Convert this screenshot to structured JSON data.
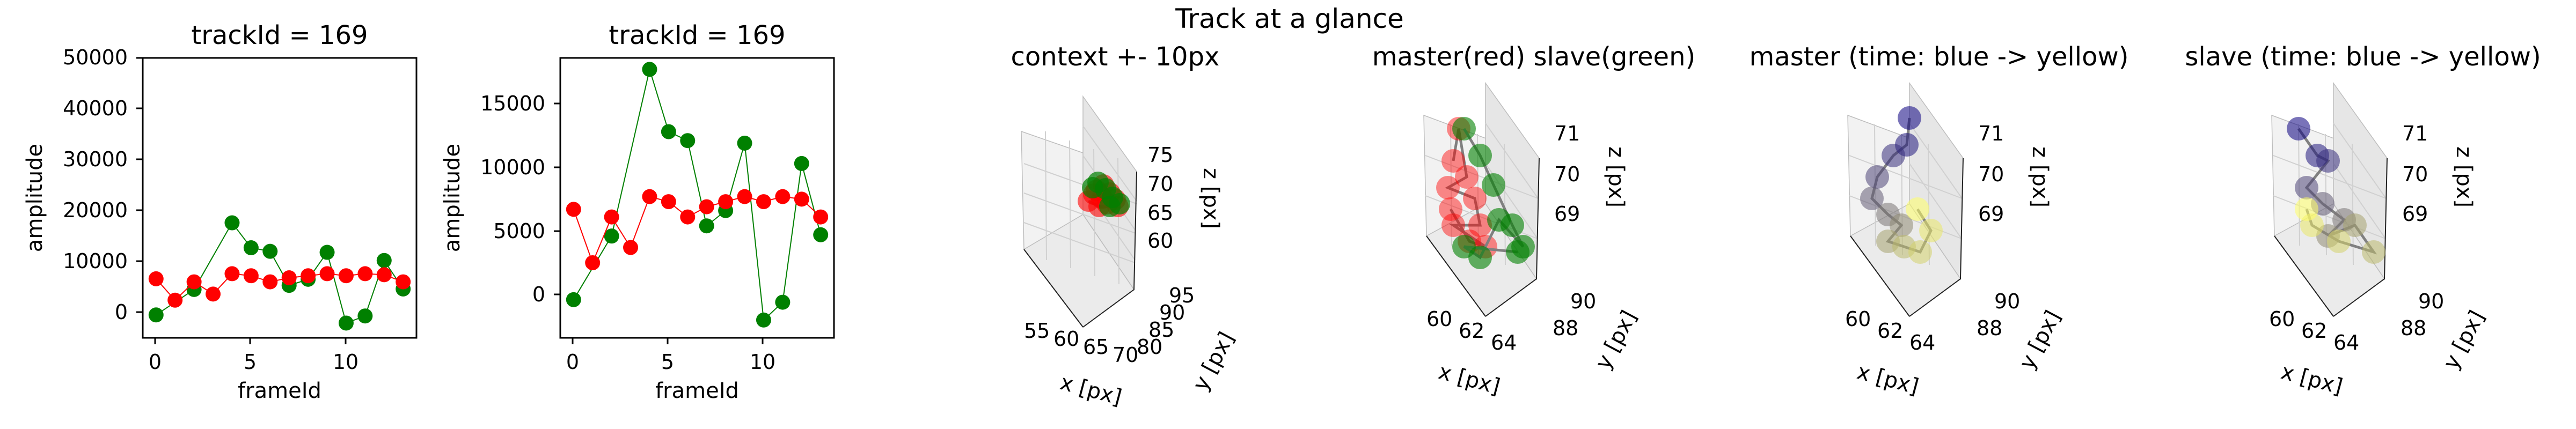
{
  "figure": {
    "suptitle": "Track at a glance"
  },
  "colors": {
    "master": "#ff0000",
    "slave": "#008000",
    "path": "#808080",
    "time_start": "#0b0080",
    "time_end": "#ffff66"
  },
  "chart_data": [
    {
      "type": "line",
      "title": "trackId = 169",
      "xlabel": "frameId",
      "ylabel": "amplitude",
      "xlim": [
        -0.7,
        13.7
      ],
      "ylim": [
        -5000,
        50000
      ],
      "xticks": [
        "0",
        "5",
        "10"
      ],
      "yticks": [
        "0",
        "10000",
        "20000",
        "30000",
        "40000",
        "50000"
      ],
      "series": [
        {
          "values": [
            6600,
            2400,
            6000,
            3600,
            7600,
            7200,
            6000,
            6800,
            7200,
            7600,
            7200,
            7600,
            7400,
            6000
          ]
        },
        {
          "values": [
            -500,
            null,
            4500,
            null,
            17600,
            12700,
            12000,
            5300,
            6500,
            11800,
            -2100,
            -700,
            10200,
            4600
          ]
        }
      ]
    },
    {
      "type": "line",
      "title": "trackId = 169",
      "xlabel": "frameId",
      "ylabel": "amplitude",
      "xlim": [
        -0.7,
        13.7
      ],
      "ylim": [
        -3500,
        18500
      ],
      "xticks": [
        "0",
        "5",
        "10"
      ],
      "yticks": [
        "0",
        "5000",
        "10000",
        "15000"
      ],
      "series": [
        {
          "values": [
            6600,
            2400,
            6000,
            3600,
            7600,
            7200,
            6000,
            6800,
            7200,
            7600,
            7200,
            7600,
            7400,
            6000
          ]
        },
        {
          "values": [
            -500,
            null,
            4500,
            null,
            17600,
            12700,
            12000,
            5300,
            6500,
            11800,
            -2100,
            -700,
            10200,
            4600
          ]
        }
      ]
    },
    {
      "type": "scatter3d",
      "title": "context +- 10px",
      "xlabel": "x [px]",
      "ylabel": "y [px]",
      "zlabel": "z [px]",
      "xticks": [
        "55",
        "60",
        "65",
        "70"
      ],
      "yticks": [
        "80",
        "85",
        "90",
        "95"
      ],
      "zticks": [
        "60",
        "65",
        "70",
        "75"
      ]
    },
    {
      "type": "scatter3d",
      "title": "master(red) slave(green)",
      "xlabel": "x [px]",
      "ylabel": "y [px]",
      "zlabel": "z [px]",
      "xticks": [
        "60",
        "62",
        "64"
      ],
      "yticks": [
        "88",
        "90"
      ],
      "zticks": [
        "69",
        "70",
        "71"
      ]
    },
    {
      "type": "scatter3d",
      "title": "master (time: blue -> yellow)",
      "xlabel": "x [px]",
      "ylabel": "y [px]",
      "zlabel": "z [px]",
      "xticks": [
        "60",
        "62",
        "64"
      ],
      "yticks": [
        "88",
        "90"
      ],
      "zticks": [
        "69",
        "70",
        "71"
      ]
    },
    {
      "type": "scatter3d",
      "title": "slave (time: blue -> yellow)",
      "xlabel": "x [px]",
      "ylabel": "y [px]",
      "zlabel": "z [px]",
      "xticks": [
        "60",
        "62",
        "64"
      ],
      "yticks": [
        "88",
        "90"
      ],
      "zticks": [
        "69",
        "70",
        "71"
      ]
    }
  ]
}
